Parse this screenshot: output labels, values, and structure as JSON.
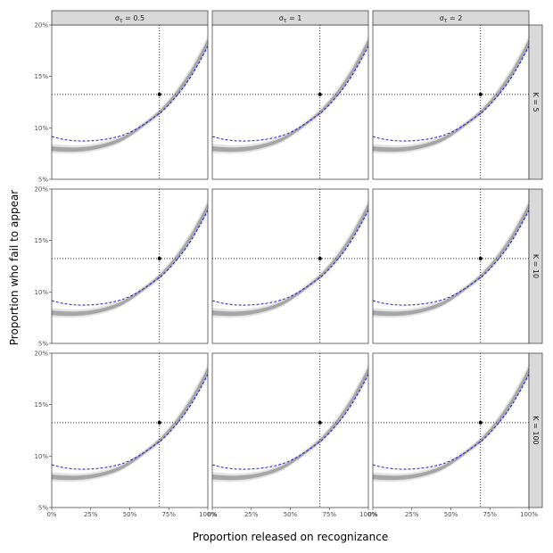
{
  "chart_data": {
    "type": "line",
    "xlabel": "Proportion released on recognizance",
    "ylabel": "Proportion who fail to appear",
    "xlim": [
      0,
      1
    ],
    "ylim": [
      0.05,
      0.2
    ],
    "x_tick_labels": [
      "0%",
      "25%",
      "50%",
      "75%",
      "100%"
    ],
    "y_tick_labels": [
      "5%",
      "10%",
      "15%",
      "20%"
    ],
    "columns": [
      {
        "label_prefix": "σ",
        "label_sub": "τ",
        "label_suffix": " = 0.5"
      },
      {
        "label_prefix": "σ",
        "label_sub": "τ",
        "label_suffix": " = 1"
      },
      {
        "label_prefix": "σ",
        "label_sub": "τ",
        "label_suffix": " = 2"
      }
    ],
    "rows": [
      {
        "label": "K = 5"
      },
      {
        "label": "K = 10"
      },
      {
        "label": "K = 100"
      }
    ],
    "reference_point": {
      "x": 0.69,
      "y": 0.1325
    },
    "reference_lines": {
      "x": 0.69,
      "y": 0.1325
    },
    "series": [
      {
        "kind": "outer-band",
        "x": [
          0.0,
          0.05,
          0.1,
          0.15,
          0.2,
          0.25,
          0.3,
          0.35,
          0.4,
          0.45,
          0.5,
          0.55,
          0.6,
          0.65,
          0.7,
          0.75,
          0.8,
          0.85,
          0.9,
          0.95,
          1.0
        ],
        "lower": [
          0.0755,
          0.075,
          0.0748,
          0.075,
          0.0755,
          0.0765,
          0.078,
          0.08,
          0.0825,
          0.086,
          0.0905,
          0.096,
          0.1015,
          0.107,
          0.113,
          0.1205,
          0.129,
          0.1385,
          0.15,
          0.1625,
          0.1765
        ],
        "upper": [
          0.0845,
          0.0838,
          0.0832,
          0.083,
          0.0833,
          0.084,
          0.0852,
          0.087,
          0.0895,
          0.0925,
          0.0965,
          0.1012,
          0.1068,
          0.113,
          0.12,
          0.1285,
          0.138,
          0.149,
          0.161,
          0.175,
          0.1895
        ]
      },
      {
        "kind": "inner-band",
        "x": [
          0.0,
          0.05,
          0.1,
          0.15,
          0.2,
          0.25,
          0.3,
          0.35,
          0.4,
          0.45,
          0.5,
          0.55,
          0.6,
          0.65,
          0.7,
          0.75,
          0.8,
          0.85,
          0.9,
          0.95,
          1.0
        ],
        "lower": [
          0.0775,
          0.077,
          0.0767,
          0.0768,
          0.0772,
          0.0782,
          0.0797,
          0.0816,
          0.084,
          0.0873,
          0.0917,
          0.097,
          0.1027,
          0.1085,
          0.1148,
          0.1225,
          0.1312,
          0.141,
          0.1525,
          0.1655,
          0.1795
        ],
        "upper": [
          0.082,
          0.0814,
          0.081,
          0.0809,
          0.0813,
          0.0821,
          0.0834,
          0.0852,
          0.0877,
          0.0908,
          0.095,
          0.0998,
          0.1053,
          0.1113,
          0.118,
          0.1263,
          0.1355,
          0.1462,
          0.158,
          0.1718,
          0.1862
        ]
      },
      {
        "kind": "dashed-line",
        "color": "#1a1adb",
        "x": [
          0.0,
          0.05,
          0.1,
          0.15,
          0.2,
          0.25,
          0.3,
          0.35,
          0.4,
          0.45,
          0.5,
          0.55,
          0.6,
          0.65,
          0.7,
          0.75,
          0.8,
          0.85,
          0.9,
          0.95,
          1.0
        ],
        "y": [
          0.0915,
          0.0895,
          0.0882,
          0.0874,
          0.0872,
          0.0874,
          0.088,
          0.089,
          0.0905,
          0.0925,
          0.0955,
          0.0995,
          0.1045,
          0.1095,
          0.115,
          0.1225,
          0.131,
          0.1405,
          0.152,
          0.165,
          0.1795
        ]
      }
    ],
    "colors": {
      "outer_band": "#e3e3e3",
      "inner_band": "#a6a6a6",
      "dashed_line": "#1a1adb",
      "strip_fill": "#d9d9d9",
      "panel_border": "#333333"
    }
  }
}
